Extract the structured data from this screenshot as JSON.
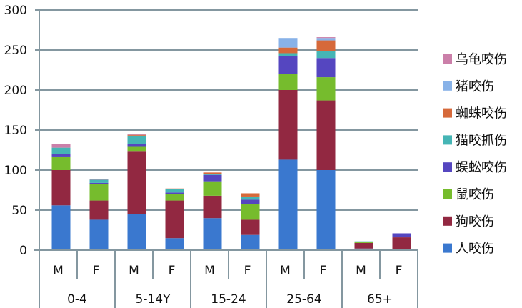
{
  "chart_data": {
    "type": "bar",
    "stacked": true,
    "ylim": [
      0,
      300
    ],
    "yticks": [
      0,
      50,
      100,
      150,
      200,
      250,
      300
    ],
    "grid": true,
    "legend_position": "right",
    "categories": [
      "M",
      "F",
      "M",
      "F",
      "M",
      "F",
      "M",
      "F",
      "M",
      "F"
    ],
    "groups": [
      {
        "label": "0-4",
        "span": 2
      },
      {
        "label": "5-14Y",
        "span": 2
      },
      {
        "label": "15-24",
        "span": 2
      },
      {
        "label": "25-64",
        "span": 2
      },
      {
        "label": "65+",
        "span": 2
      }
    ],
    "series": [
      {
        "name": "人咬伤",
        "color": "#3A78CF",
        "values": [
          56,
          38,
          45,
          15,
          40,
          19,
          113,
          100,
          2,
          1
        ]
      },
      {
        "name": "狗咬伤",
        "color": "#922841",
        "values": [
          44,
          24,
          78,
          47,
          28,
          19,
          87,
          87,
          7,
          15
        ]
      },
      {
        "name": "鼠咬伤",
        "color": "#76BC2D",
        "values": [
          17,
          21,
          6,
          8,
          18,
          20,
          20,
          29,
          1,
          0
        ]
      },
      {
        "name": "蜈蚣咬伤",
        "color": "#5546C0",
        "values": [
          3,
          1,
          4,
          2,
          8,
          5,
          22,
          24,
          0,
          5
        ]
      },
      {
        "name": "猫咬抓伤",
        "color": "#45B5B5",
        "values": [
          8,
          4,
          10,
          4,
          1,
          4,
          4,
          9,
          1,
          0
        ]
      },
      {
        "name": "蜘蛛咬伤",
        "color": "#D6693A",
        "values": [
          0,
          0,
          1,
          1,
          2,
          4,
          7,
          13,
          0,
          0
        ]
      },
      {
        "name": "猪咬伤",
        "color": "#88B2E8",
        "values": [
          0,
          0,
          0,
          0,
          0,
          0,
          12,
          3,
          0,
          0
        ]
      },
      {
        "name": "乌龟咬伤",
        "color": "#CB7FA9",
        "values": [
          5,
          1,
          1,
          0,
          0,
          0,
          0,
          1,
          0,
          0
        ]
      }
    ]
  }
}
